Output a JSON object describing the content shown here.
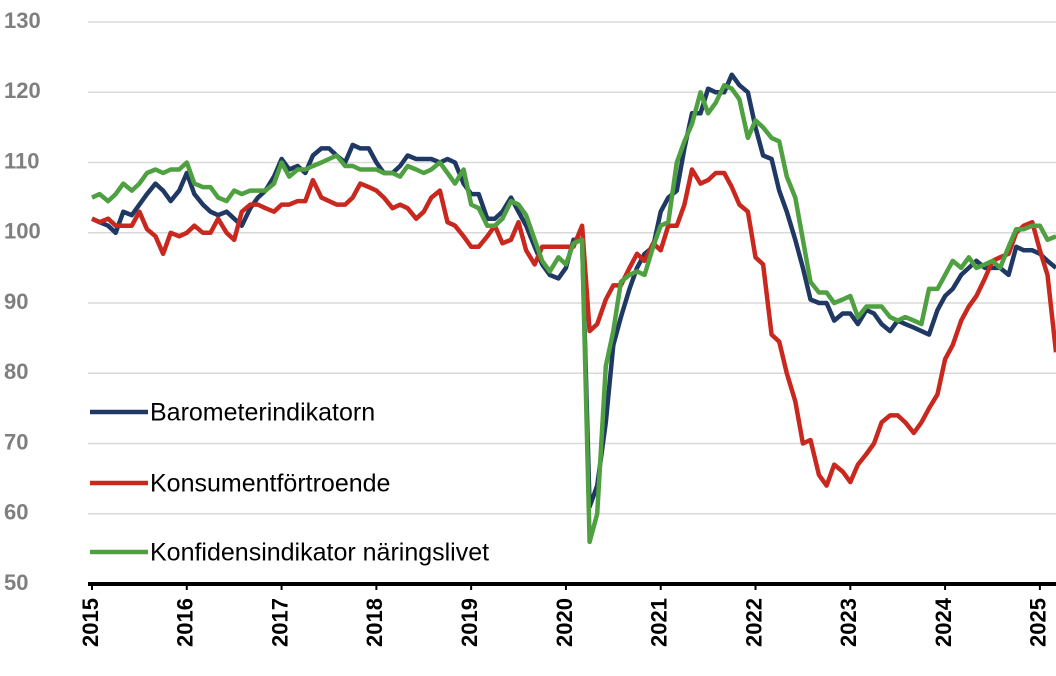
{
  "chart_data": {
    "type": "line",
    "x": [
      2015,
      2015.08,
      2015.17,
      2015.25,
      2015.33,
      2015.42,
      2015.5,
      2015.58,
      2015.67,
      2015.75,
      2015.83,
      2015.92,
      2016,
      2016.08,
      2016.17,
      2016.25,
      2016.33,
      2016.42,
      2016.5,
      2016.58,
      2016.67,
      2016.75,
      2016.83,
      2016.92,
      2017,
      2017.08,
      2017.17,
      2017.25,
      2017.33,
      2017.42,
      2017.5,
      2017.58,
      2017.67,
      2017.75,
      2017.83,
      2017.92,
      2018,
      2018.08,
      2018.17,
      2018.25,
      2018.33,
      2018.42,
      2018.5,
      2018.58,
      2018.67,
      2018.75,
      2018.83,
      2018.92,
      2019,
      2019.08,
      2019.17,
      2019.25,
      2019.33,
      2019.42,
      2019.5,
      2019.58,
      2019.67,
      2019.75,
      2019.83,
      2019.92,
      2020,
      2020.08,
      2020.17,
      2020.25,
      2020.33,
      2020.42,
      2020.5,
      2020.58,
      2020.67,
      2020.75,
      2020.83,
      2020.92,
      2021,
      2021.08,
      2021.17,
      2021.25,
      2021.33,
      2021.42,
      2021.5,
      2021.58,
      2021.67,
      2021.75,
      2021.83,
      2021.92,
      2022,
      2022.08,
      2022.17,
      2022.25,
      2022.33,
      2022.42,
      2022.5,
      2022.58,
      2022.67,
      2022.75,
      2022.83,
      2022.92,
      2023,
      2023.08,
      2023.17,
      2023.25,
      2023.33,
      2023.42,
      2023.5,
      2023.58,
      2023.67,
      2023.75,
      2023.83,
      2023.92,
      2024,
      2024.08,
      2024.17,
      2024.25,
      2024.33,
      2024.42,
      2024.5,
      2024.58,
      2024.67,
      2024.75,
      2024.83,
      2024.92,
      2025,
      2025.08,
      2025.17
    ],
    "series": [
      {
        "name": "Barometerindikatorn",
        "color": "#1f3864",
        "values": [
          102,
          101.5,
          101,
          100,
          103,
          102.5,
          104,
          105.5,
          107,
          106,
          104.5,
          106,
          108.5,
          105.5,
          104,
          103,
          102.5,
          103,
          102,
          101,
          103.5,
          105,
          106,
          108,
          110.5,
          109,
          109.5,
          108.5,
          111,
          112,
          112,
          111,
          110,
          112.5,
          112,
          112,
          110,
          108.5,
          108.5,
          109.5,
          111,
          110.5,
          110.5,
          110.5,
          110,
          110.5,
          110,
          107,
          105.5,
          105.5,
          102,
          102,
          103,
          105,
          103,
          101,
          98,
          95.5,
          94,
          93.5,
          95,
          99,
          99,
          61,
          64,
          73,
          84,
          88,
          92,
          95,
          97,
          98,
          103,
          105,
          106,
          112,
          117,
          117,
          120.5,
          120,
          120,
          122.5,
          121,
          120,
          115,
          111,
          110.5,
          106,
          103,
          99,
          95,
          90.5,
          90,
          90,
          87.5,
          88.5,
          88.5,
          87,
          89,
          88.5,
          87,
          86,
          87.5,
          87,
          86.5,
          86,
          85.5,
          89,
          91,
          92,
          94,
          95,
          96,
          95,
          95,
          95,
          94,
          98,
          97.5,
          97.5,
          97,
          96,
          95
        ]
      },
      {
        "name": "Konsumentförtroende",
        "color": "#c8281e",
        "values": [
          102,
          101.5,
          102,
          101,
          101,
          101,
          103,
          100.5,
          99.5,
          97,
          100,
          99.5,
          100,
          101,
          100,
          100,
          102,
          100,
          99,
          103,
          104,
          104,
          103.5,
          103,
          104,
          104,
          104.5,
          104.5,
          107.5,
          105,
          104.5,
          104,
          104,
          105,
          107,
          106.5,
          106,
          105,
          103.5,
          104,
          103.5,
          102,
          103,
          105,
          106,
          101.5,
          101,
          99.5,
          98,
          98,
          99.5,
          101,
          98.5,
          99,
          101.5,
          97.5,
          95.5,
          98,
          98,
          98,
          98,
          98,
          101,
          86,
          87,
          90.5,
          92.5,
          92.5,
          95,
          97,
          96,
          98.5,
          97.5,
          101,
          101,
          104,
          109,
          107,
          107.5,
          108.5,
          108.5,
          106.5,
          104,
          103,
          96.5,
          95.5,
          85.5,
          84.5,
          80,
          76,
          70,
          70.5,
          65.5,
          64,
          67,
          66,
          64.5,
          67,
          68.5,
          70,
          73,
          74,
          74,
          73,
          71.5,
          73,
          75,
          77,
          82,
          84,
          87.5,
          89.5,
          91,
          93.5,
          96,
          96.5,
          97,
          100,
          101,
          101.5,
          97.5,
          94,
          83
        ]
      },
      {
        "name": "Konfidensindikator näringslivet",
        "color": "#4ea040",
        "values": [
          105,
          105.5,
          104.5,
          105.5,
          107,
          106,
          107,
          108.5,
          109,
          108.5,
          109,
          109,
          110,
          107,
          106.5,
          106.5,
          105,
          104.5,
          106,
          105.5,
          106,
          106,
          106,
          107,
          110,
          108,
          109,
          109,
          109.5,
          110,
          110.5,
          111,
          109.5,
          109.5,
          109,
          109,
          109,
          108.5,
          108.5,
          108,
          109.5,
          109,
          108.5,
          109,
          110,
          108.5,
          107,
          109,
          104,
          103.5,
          101,
          101,
          102,
          104.5,
          104,
          102.5,
          99,
          96,
          94.5,
          96.5,
          95.5,
          98.5,
          99,
          56,
          60,
          81,
          86,
          93,
          94,
          94.5,
          94,
          98,
          101,
          101.5,
          110,
          113,
          115.5,
          120,
          117,
          118.5,
          121,
          120.5,
          119,
          113.5,
          116,
          115,
          113.5,
          113,
          108,
          105,
          99,
          93,
          91.5,
          91.5,
          90,
          90.5,
          91,
          88,
          89.5,
          89.5,
          89.5,
          88,
          87.5,
          88,
          87.5,
          87,
          92,
          92,
          94,
          96,
          95,
          96.5,
          95,
          95.5,
          96,
          95,
          98,
          100.5,
          100.5,
          101,
          101,
          99,
          99.5
        ]
      }
    ],
    "xlim": [
      2015,
      2025.17
    ],
    "xticks": [
      2015,
      2016,
      2017,
      2018,
      2019,
      2020,
      2021,
      2022,
      2023,
      2024,
      2025
    ],
    "ylim": [
      50,
      130
    ],
    "yticks": [
      50,
      60,
      70,
      80,
      90,
      100,
      110,
      120,
      130
    ],
    "grid": true,
    "legend": "lower left"
  }
}
